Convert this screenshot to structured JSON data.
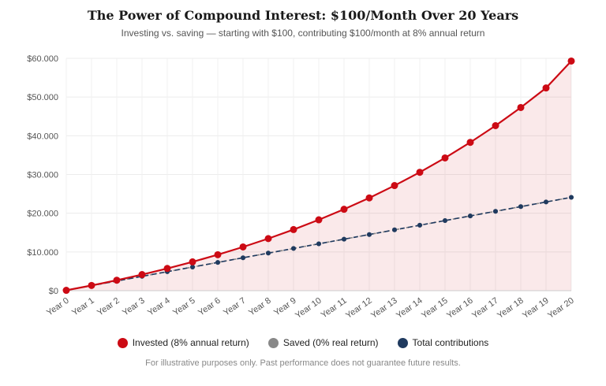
{
  "header": {
    "title": "The Power of Compound Interest: $100/Month Over 20 Years",
    "subtitle": "Investing vs. saving — starting with $100, contributing $100/month at 8% annual return"
  },
  "footnote": "For illustrative purposes only. Past performance does not guarantee future results.",
  "chart_data": {
    "type": "line",
    "title": "The Power of Compound Interest: $100/Month Over 20 Years",
    "subtitle": "Investing vs. saving — starting with $100, contributing $100/month at 8% annual return",
    "xlabel": "",
    "ylabel": "",
    "categories": [
      "Year 0",
      "Year 1",
      "Year 2",
      "Year 3",
      "Year 4",
      "Year 5",
      "Year 6",
      "Year 7",
      "Year 8",
      "Year 9",
      "Year 10",
      "Year 11",
      "Year 12",
      "Year 13",
      "Year 14",
      "Year 15",
      "Year 16",
      "Year 17",
      "Year 18",
      "Year 19",
      "Year 20"
    ],
    "ylim": [
      0,
      60000
    ],
    "yticks": [
      0,
      10000,
      20000,
      30000,
      40000,
      50000,
      60000
    ],
    "ytick_labels": [
      "$0",
      "$10.000",
      "$20.000",
      "$30.000",
      "$40.000",
      "$50.000",
      "$60.000"
    ],
    "grid": true,
    "legend_position": "bottom",
    "series": [
      {
        "name": "Invested (8% annual return)",
        "color": "#cc0a14",
        "style": "solid",
        "fill": true,
        "values": [
          100,
          1350,
          2700,
          4160,
          5740,
          7440,
          9290,
          11290,
          13450,
          15780,
          18300,
          21020,
          23960,
          27140,
          30570,
          34280,
          38290,
          42610,
          47290,
          52340,
          59300
        ]
      },
      {
        "name": "Saved (0% real return)",
        "color": "#888888",
        "style": "dashed",
        "fill": false,
        "values": [
          100,
          1300,
          2500,
          3700,
          4900,
          6100,
          7300,
          8500,
          9700,
          10900,
          12100,
          13300,
          14500,
          15700,
          16900,
          18100,
          19300,
          20500,
          21700,
          22900,
          24100
        ]
      },
      {
        "name": "Total contributions",
        "color": "#1f3a5f",
        "style": "dashed",
        "fill": false,
        "values": [
          100,
          1300,
          2500,
          3700,
          4900,
          6100,
          7300,
          8500,
          9700,
          10900,
          12100,
          13300,
          14500,
          15700,
          16900,
          18100,
          19300,
          20500,
          21700,
          22900,
          24100
        ]
      }
    ]
  }
}
